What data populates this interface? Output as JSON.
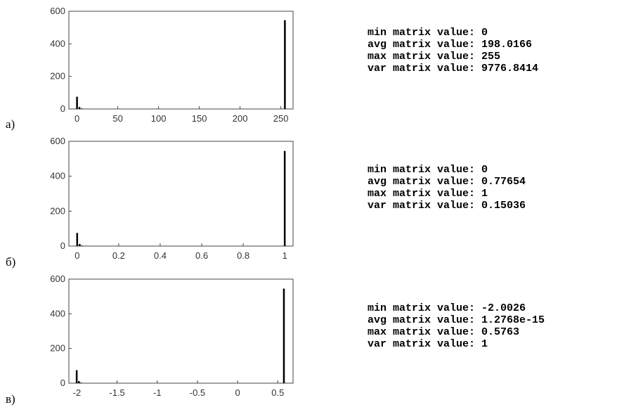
{
  "chart_data": [
    {
      "type": "bar",
      "label": "а)",
      "xlim": [
        -10,
        265
      ],
      "ylim": [
        0,
        600
      ],
      "x_ticks": [
        0,
        50,
        100,
        150,
        200,
        250
      ],
      "y_ticks": [
        0,
        200,
        400,
        600
      ],
      "x": [
        0,
        3,
        6,
        255
      ],
      "values": [
        75,
        12,
        3,
        545
      ],
      "stats": [
        "min matrix value: 0",
        "avg matrix value: 198.0166",
        "max matrix value: 255",
        "var matrix value: 9776.8414"
      ]
    },
    {
      "type": "bar",
      "label": "б)",
      "xlim": [
        -0.04,
        1.04
      ],
      "ylim": [
        0,
        600
      ],
      "x_ticks": [
        "0",
        "0.2",
        "0.4",
        "0.6",
        "0.8",
        "1"
      ],
      "y_ticks": [
        0,
        200,
        400,
        600
      ],
      "x": [
        0,
        0.012,
        0.024,
        1
      ],
      "values": [
        75,
        12,
        3,
        545
      ],
      "stats": [
        "min matrix value: 0",
        "avg matrix value: 0.77654",
        "max matrix value: 1",
        "var matrix value: 0.15036"
      ]
    },
    {
      "type": "bar",
      "label": "в)",
      "xlim": [
        -2.1,
        0.69
      ],
      "ylim": [
        0,
        600
      ],
      "x_ticks": [
        "-2",
        "-1.5",
        "-1",
        "-0.5",
        "0",
        "0.5"
      ],
      "y_ticks": [
        0,
        200,
        400,
        600
      ],
      "x": [
        -2.0026,
        -1.975,
        -1.95,
        0.5763
      ],
      "values": [
        75,
        12,
        3,
        545
      ],
      "stats": [
        "min matrix value: -2.0026",
        "avg matrix value: 1.2768e-15",
        "max matrix value: 0.5763",
        "var matrix value: 1"
      ]
    }
  ]
}
